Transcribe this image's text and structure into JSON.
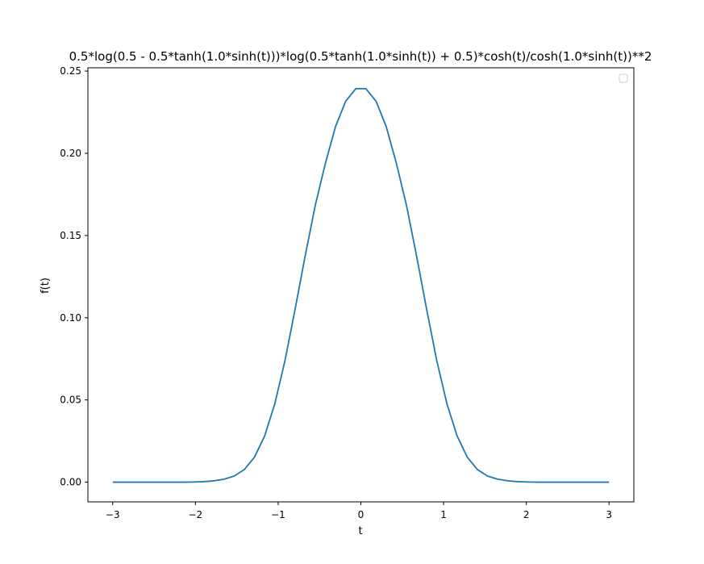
{
  "chart_data": {
    "type": "line",
    "title": "0.5*log(0.5 - 0.5*tanh(1.0*sinh(t)))*log(0.5*tanh(1.0*sinh(t)) + 0.5)*cosh(t)/cosh(1.0*sinh(t))**2",
    "xlabel": "t",
    "ylabel": "f(t)",
    "xlim": [
      -3.3,
      3.3
    ],
    "ylim": [
      -0.012,
      0.252
    ],
    "xticks": [
      -3,
      -2,
      -1,
      0,
      1,
      2,
      3
    ],
    "xtick_labels": [
      "−3",
      "−2",
      "−1",
      "0",
      "1",
      "2",
      "3"
    ],
    "yticks": [
      0.0,
      0.05,
      0.1,
      0.15,
      0.2,
      0.25
    ],
    "ytick_labels": [
      "0.00",
      "0.05",
      "0.10",
      "0.15",
      "0.20",
      "0.25"
    ],
    "grid": false,
    "legend": "upper right, empty",
    "series": [
      {
        "color": "#1f77b4",
        "x": [
          -3.0,
          -2.878,
          -2.755,
          -2.633,
          -2.51,
          -2.388,
          -2.265,
          -2.143,
          -2.02,
          -1.898,
          -1.776,
          -1.653,
          -1.531,
          -1.408,
          -1.286,
          -1.163,
          -1.041,
          -0.918,
          -0.796,
          -0.673,
          -0.551,
          -0.429,
          -0.306,
          -0.184,
          -0.061,
          0.061,
          0.184,
          0.306,
          0.429,
          0.551,
          0.673,
          0.796,
          0.918,
          1.041,
          1.163,
          1.286,
          1.408,
          1.531,
          1.653,
          1.776,
          1.898,
          2.02,
          2.143,
          2.265,
          2.388,
          2.51,
          2.633,
          2.755,
          2.878,
          3.0
        ],
        "y": [
          0.0,
          0.0,
          0.0,
          0.0,
          0.0,
          0.0,
          0.0,
          0.0,
          0.0001,
          0.0003,
          0.0008,
          0.0018,
          0.0037,
          0.0077,
          0.0152,
          0.0281,
          0.0476,
          0.0738,
          0.1049,
          0.1377,
          0.1684,
          0.1939,
          0.2163,
          0.2316,
          0.2393,
          0.2393,
          0.2316,
          0.2163,
          0.1939,
          0.1684,
          0.1377,
          0.1049,
          0.0738,
          0.0476,
          0.0281,
          0.0152,
          0.0077,
          0.0037,
          0.0018,
          0.0008,
          0.0003,
          0.0001,
          0.0,
          0.0,
          0.0,
          0.0,
          0.0,
          0.0,
          0.0,
          0.0
        ]
      }
    ]
  }
}
